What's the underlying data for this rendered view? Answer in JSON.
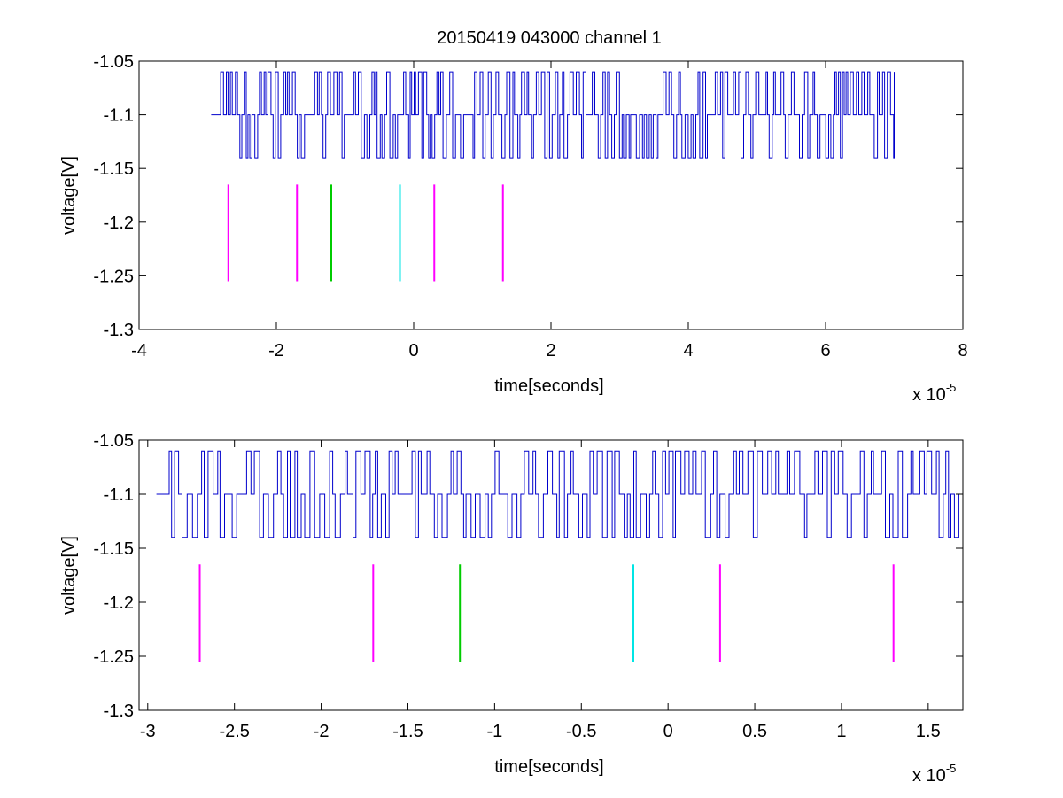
{
  "figure": {
    "title": "20150419 043000 channel 1"
  },
  "chart_data": [
    {
      "type": "line",
      "xlabel": "time[seconds]",
      "ylabel": "voltage[V]",
      "x_exponent_label": "x 10",
      "x_exponent": "-5",
      "xlim": [
        -4e-05,
        8e-05
      ],
      "ylim": [
        -1.3,
        -1.05
      ],
      "xticks": [
        -4e-05,
        -2e-05,
        0,
        2e-05,
        4e-05,
        6e-05,
        8e-05
      ],
      "xtick_labels": [
        "-4",
        "-2",
        "0",
        "2",
        "4",
        "6",
        "8"
      ],
      "yticks": [
        -1.3,
        -1.25,
        -1.2,
        -1.15,
        -1.1,
        -1.05
      ],
      "ytick_labels": [
        "-1.3",
        "-1.25",
        "-1.2",
        "-1.15",
        "-1.1",
        "-1.05"
      ],
      "grid": false,
      "signal": {
        "color": "#0000cc",
        "x_start": -2.95e-05,
        "x_end": 7e-05,
        "baseline": -1.1,
        "high": -1.06,
        "low": -1.14
      },
      "markers": [
        {
          "x": -2.7e-05,
          "y_min": -1.255,
          "y_max": -1.165,
          "color": "#ff00ff"
        },
        {
          "x": -1.7e-05,
          "y_min": -1.255,
          "y_max": -1.165,
          "color": "#ff00ff"
        },
        {
          "x": -1.2e-05,
          "y_min": -1.255,
          "y_max": -1.165,
          "color": "#00cc00"
        },
        {
          "x": -2e-06,
          "y_min": -1.255,
          "y_max": -1.165,
          "color": "#00e5e5"
        },
        {
          "x": 3e-06,
          "y_min": -1.255,
          "y_max": -1.165,
          "color": "#ff00ff"
        },
        {
          "x": 1.3e-05,
          "y_min": -1.255,
          "y_max": -1.165,
          "color": "#ff00ff"
        }
      ]
    },
    {
      "type": "line",
      "xlabel": "time[seconds]",
      "ylabel": "voltage[V]",
      "x_exponent_label": "x 10",
      "x_exponent": "-5",
      "xlim": [
        -3.05e-05,
        1.7e-05
      ],
      "ylim": [
        -1.3,
        -1.05
      ],
      "xticks": [
        -3e-05,
        -2.5e-05,
        -2e-05,
        -1.5e-05,
        -1e-05,
        -5e-06,
        0,
        5e-06,
        1e-05,
        1.5e-05
      ],
      "xtick_labels": [
        "-3",
        "-2.5",
        "-2",
        "-1.5",
        "-1",
        "-0.5",
        "0",
        "0.5",
        "1",
        "1.5"
      ],
      "yticks": [
        -1.3,
        -1.25,
        -1.2,
        -1.15,
        -1.1,
        -1.05
      ],
      "ytick_labels": [
        "-1.3",
        "-1.25",
        "-1.2",
        "-1.15",
        "-1.1",
        "-1.05"
      ],
      "grid": false,
      "signal": {
        "color": "#0000cc",
        "x_start": -2.95e-05,
        "x_end": 1.7e-05,
        "baseline": -1.1,
        "high": -1.06,
        "low": -1.14
      },
      "markers": [
        {
          "x": -2.7e-05,
          "y_min": -1.255,
          "y_max": -1.165,
          "color": "#ff00ff"
        },
        {
          "x": -1.7e-05,
          "y_min": -1.255,
          "y_max": -1.165,
          "color": "#ff00ff"
        },
        {
          "x": -1.2e-05,
          "y_min": -1.255,
          "y_max": -1.165,
          "color": "#00cc00"
        },
        {
          "x": -2e-06,
          "y_min": -1.255,
          "y_max": -1.165,
          "color": "#00e5e5"
        },
        {
          "x": 3e-06,
          "y_min": -1.255,
          "y_max": -1.165,
          "color": "#ff00ff"
        },
        {
          "x": 1.3e-05,
          "y_min": -1.255,
          "y_max": -1.165,
          "color": "#ff00ff"
        }
      ]
    }
  ]
}
